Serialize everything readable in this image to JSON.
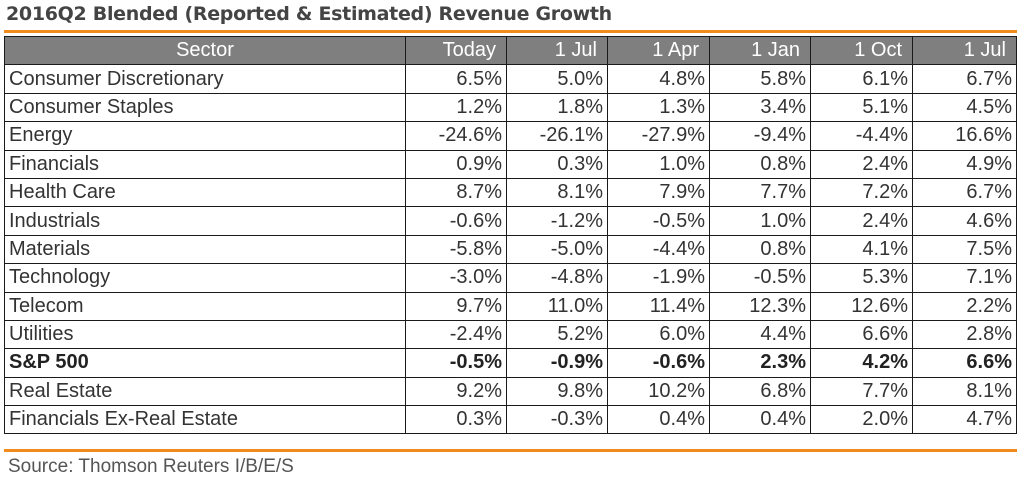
{
  "title": "2016Q2 Blended (Reported & Estimated) Revenue Growth",
  "source": "Source: Thomson Reuters I/B/E/S",
  "colors": {
    "accent": "#f08c1e",
    "header_bg": "#7f7f7f"
  },
  "chart_data": {
    "type": "table",
    "title": "2016Q2 Blended (Reported & Estimated) Revenue Growth",
    "columns": [
      "Sector",
      "Today",
      "1 Jul",
      "1 Apr",
      "1 Jan",
      "1 Oct",
      "1 Jul"
    ],
    "rows": [
      {
        "sector": "Consumer Discretionary",
        "values": [
          "6.5%",
          "5.0%",
          "4.8%",
          "5.8%",
          "6.1%",
          "6.7%"
        ],
        "bold": false
      },
      {
        "sector": "Consumer Staples",
        "values": [
          "1.2%",
          "1.8%",
          "1.3%",
          "3.4%",
          "5.1%",
          "4.5%"
        ],
        "bold": false
      },
      {
        "sector": "Energy",
        "values": [
          "-24.6%",
          "-26.1%",
          "-27.9%",
          "-9.4%",
          "-4.4%",
          "16.6%"
        ],
        "bold": false
      },
      {
        "sector": "Financials",
        "values": [
          "0.9%",
          "0.3%",
          "1.0%",
          "0.8%",
          "2.4%",
          "4.9%"
        ],
        "bold": false
      },
      {
        "sector": "Health Care",
        "values": [
          "8.7%",
          "8.1%",
          "7.9%",
          "7.7%",
          "7.2%",
          "6.7%"
        ],
        "bold": false
      },
      {
        "sector": "Industrials",
        "values": [
          "-0.6%",
          "-1.2%",
          "-0.5%",
          "1.0%",
          "2.4%",
          "4.6%"
        ],
        "bold": false
      },
      {
        "sector": "Materials",
        "values": [
          "-5.8%",
          "-5.0%",
          "-4.4%",
          "0.8%",
          "4.1%",
          "7.5%"
        ],
        "bold": false
      },
      {
        "sector": "Technology",
        "values": [
          "-3.0%",
          "-4.8%",
          "-1.9%",
          "-0.5%",
          "5.3%",
          "7.1%"
        ],
        "bold": false
      },
      {
        "sector": "Telecom",
        "values": [
          "9.7%",
          "11.0%",
          "11.4%",
          "12.3%",
          "12.6%",
          "2.2%"
        ],
        "bold": false
      },
      {
        "sector": "Utilities",
        "values": [
          "-2.4%",
          "5.2%",
          "6.0%",
          "4.4%",
          "6.6%",
          "2.8%"
        ],
        "bold": false
      },
      {
        "sector": "S&P 500",
        "values": [
          "-0.5%",
          "-0.9%",
          "-0.6%",
          "2.3%",
          "4.2%",
          "6.6%"
        ],
        "bold": true
      },
      {
        "sector": "Real Estate",
        "values": [
          "9.2%",
          "9.8%",
          "10.2%",
          "6.8%",
          "7.7%",
          "8.1%"
        ],
        "bold": false
      },
      {
        "sector": "Financials Ex-Real Estate",
        "values": [
          "0.3%",
          "-0.3%",
          "0.4%",
          "0.4%",
          "2.0%",
          "4.7%"
        ],
        "bold": false
      }
    ]
  }
}
